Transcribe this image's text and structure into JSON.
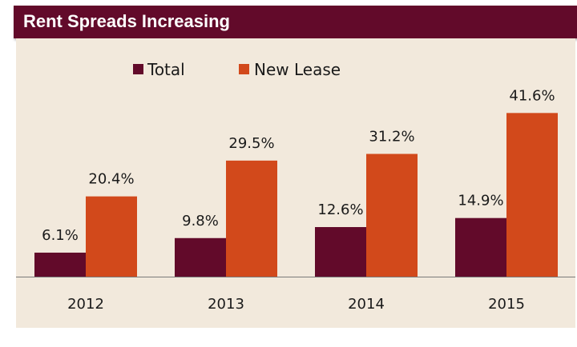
{
  "header": {
    "title": "Rent Spreads Increasing"
  },
  "colors": {
    "total": "#620a2a",
    "new_lease": "#d2491b",
    "panel": "#f2e9dc",
    "title_bar": "#620a2a"
  },
  "chart_data": {
    "type": "bar",
    "title": "Rent Spreads Increasing",
    "categories": [
      "2012",
      "2013",
      "2014",
      "2015"
    ],
    "series": [
      {
        "name": "Total",
        "values": [
          6.1,
          9.8,
          12.6,
          14.9
        ],
        "labels": [
          "6.1%",
          "9.8%",
          "12.6%",
          "14.9%"
        ]
      },
      {
        "name": "New Lease",
        "values": [
          20.4,
          29.5,
          31.2,
          41.6
        ],
        "labels": [
          "20.4%",
          "29.5%",
          "31.2%",
          "41.6%"
        ]
      }
    ],
    "unit": "%",
    "ylim": [
      0,
      45
    ],
    "grid": false,
    "legend": "top-center"
  }
}
